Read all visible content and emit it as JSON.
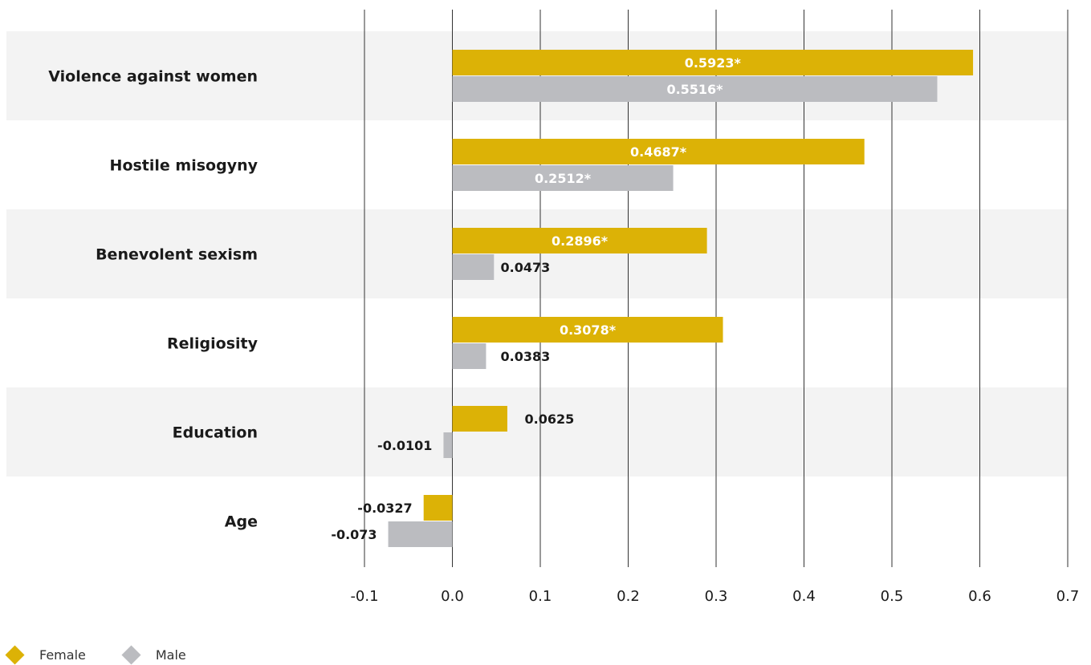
{
  "chart_data": {
    "type": "bar",
    "orientation": "horizontal",
    "categories": [
      "Violence against women",
      "Hostile misogyny",
      "Benevolent sexism",
      "Religiosity",
      "Education",
      "Age"
    ],
    "series": [
      {
        "name": "Female",
        "color": "#dcb206",
        "values": [
          0.5923,
          0.4687,
          0.2896,
          0.3078,
          0.0625,
          -0.0327
        ],
        "labels": [
          "0.5923*",
          "0.4687*",
          "0.2896*",
          "0.3078*",
          "0.0625",
          "-0.0327"
        ]
      },
      {
        "name": "Male",
        "color": "#bbbcc0",
        "values": [
          0.5516,
          0.2512,
          0.0473,
          0.0383,
          -0.0101,
          -0.073
        ],
        "labels": [
          "0.5516*",
          "0.2512*",
          "0.0473",
          "0.0383",
          "-0.0101",
          "-0.073"
        ]
      }
    ],
    "xlim": [
      -0.1,
      0.7
    ],
    "ticks": [
      -0.1,
      0.0,
      0.1,
      0.2,
      0.3,
      0.4,
      0.5,
      0.6,
      0.7
    ],
    "tick_labels": [
      "-0.1",
      "0.0",
      "0.1",
      "0.2",
      "0.3",
      "0.4",
      "0.5",
      "0.6",
      "0.7"
    ],
    "grid": "vertical lines at ticks",
    "band_color": "#f3f3f3",
    "legend": {
      "placement": "bottom-left",
      "shape": "diamond"
    }
  },
  "legend": {
    "female_label": "Female",
    "male_label": "Male"
  }
}
